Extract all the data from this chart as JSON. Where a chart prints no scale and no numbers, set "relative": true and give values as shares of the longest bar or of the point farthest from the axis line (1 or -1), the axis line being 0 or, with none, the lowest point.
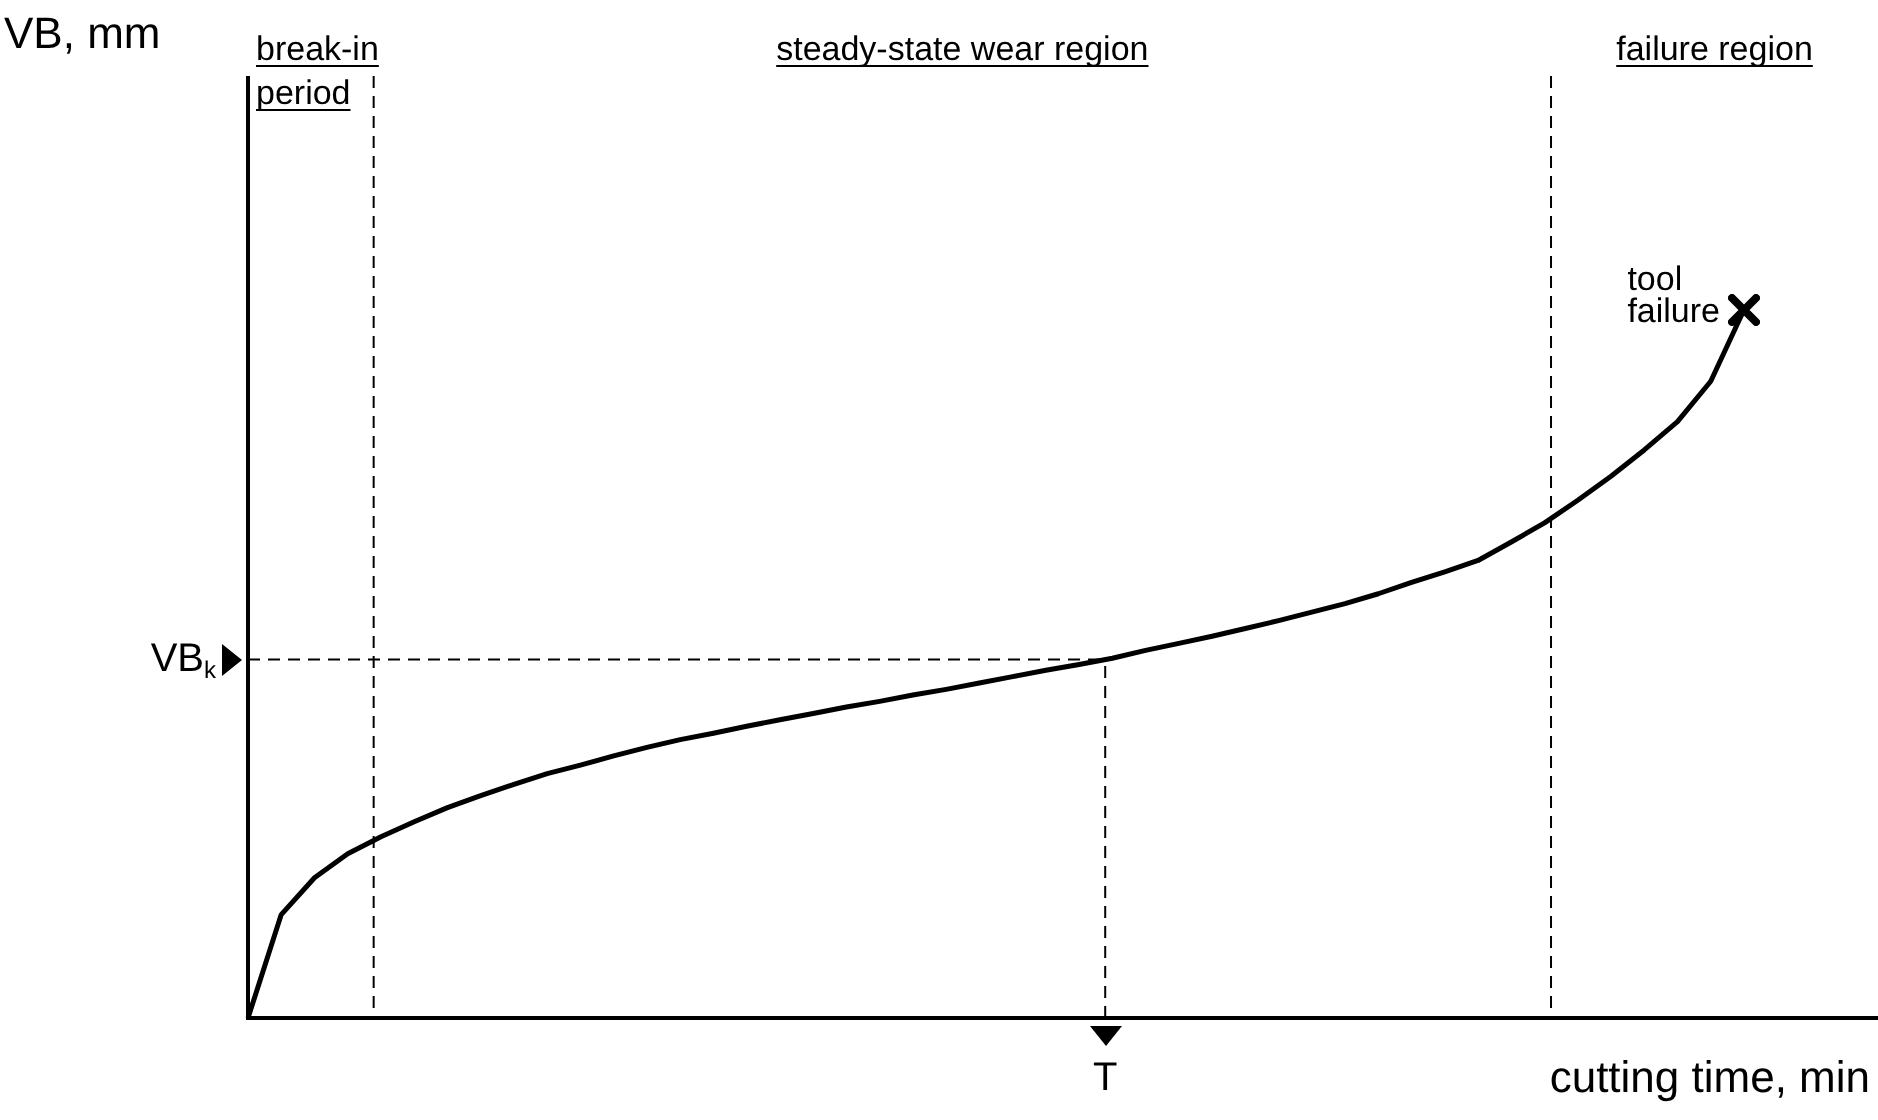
{
  "chart_data": {
    "type": "line",
    "relative": true,
    "xlabel": "cutting time, min",
    "line_style": "solid",
    "categories": [
      null,
      null,
      null,
      null,
      null,
      null,
      null,
      null,
      null,
      null,
      null,
      null,
      null,
      null,
      null,
      null,
      null,
      null,
      null,
      null,
      null,
      null,
      null,
      null,
      null,
      null,
      null,
      null,
      null,
      null,
      null,
      null,
      null,
      null,
      null,
      null,
      null,
      null,
      null,
      null,
      null,
      null,
      null,
      null,
      null,
      null
    ],
    "series": [
      {
        "color": "#000000",
        "values": [
          0,
          0.146,
          0.198,
          0.232,
          0.256,
          0.277,
          0.297,
          0.314,
          0.33,
          0.345,
          0.357,
          0.37,
          0.382,
          0.393,
          0.402,
          0.412,
          0.421,
          0.43,
          0.439,
          0.447,
          0.456,
          0.464,
          0.473,
          0.482,
          0.491,
          0.499,
          0.508,
          0.519,
          0.529,
          0.539,
          0.55,
          0.561,
          0.573,
          0.585,
          0.599,
          0.615,
          0.63,
          0.646,
          0.672,
          0.699,
          0.731,
          0.765,
          0.802,
          0.842,
          0.899,
          1
        ]
      }
    ],
    "ref_lines": [
      {
        "axis": "y",
        "value": 0.506,
        "label": "VB$_{k}$",
        "line_style": "dashed"
      }
    ],
    "annotations": [
      "VB, mm",
      "break-in period",
      "steady-state wear region",
      "failure region",
      "T",
      "tool failure"
    ]
  }
}
